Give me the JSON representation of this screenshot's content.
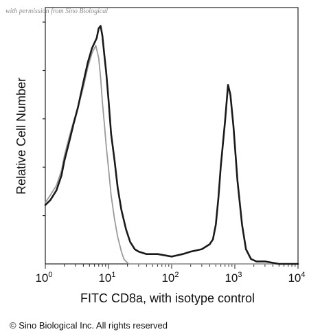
{
  "watermark": "with permission from Sino Biological",
  "copyright": "© Sino Biological Inc. All rights reserved",
  "chart_data": {
    "type": "line",
    "xlabel": "FITC CD8a, with isotype control",
    "ylabel": "Relative Cell Number",
    "x_scale": "log",
    "xlim": [
      1,
      10000
    ],
    "ylim": [
      0,
      100
    ],
    "x_ticks": [
      {
        "value": 1,
        "base": "10",
        "exp": "0"
      },
      {
        "value": 10,
        "base": "10",
        "exp": "1"
      },
      {
        "value": 100,
        "base": "10",
        "exp": "2"
      },
      {
        "value": 1000,
        "base": "10",
        "exp": "3"
      },
      {
        "value": 10000,
        "base": "10",
        "exp": "4"
      }
    ],
    "grid": false,
    "colors": {
      "sample": "#1a1a1a",
      "isotype": "#9a9a9a"
    },
    "series": [
      {
        "role": "sample",
        "x": [
          1,
          1.2,
          1.5,
          1.8,
          2,
          2.4,
          2.8,
          3.3,
          4,
          4.7,
          5.5,
          6.5,
          7,
          7.5,
          8,
          8.6,
          9.2,
          10,
          11,
          12.5,
          14,
          16,
          19,
          22,
          26,
          30,
          40,
          60,
          100,
          150,
          200,
          300,
          400,
          450,
          500,
          550,
          600,
          700,
          780,
          850,
          950,
          1100,
          1300,
          1500,
          1800,
          2200,
          3000,
          5000,
          10000
        ],
        "y": [
          24,
          26,
          30,
          36,
          42,
          50,
          57,
          64,
          74,
          82,
          88,
          92,
          96,
          97,
          93,
          85,
          78,
          67,
          53,
          42,
          31,
          22,
          14,
          9,
          6,
          5,
          4,
          4,
          3,
          4,
          5,
          6,
          8,
          10,
          16,
          27,
          40,
          58,
          73,
          69,
          56,
          34,
          16,
          6,
          2,
          1,
          1,
          0,
          0
        ]
      },
      {
        "role": "isotype",
        "x": [
          1,
          1.2,
          1.5,
          1.8,
          2,
          2.4,
          2.8,
          3.3,
          4,
          4.7,
          5.5,
          6.3,
          7,
          7.5,
          8,
          8.6,
          9.2,
          10,
          11,
          12.5,
          14,
          16,
          17.5,
          19,
          21,
          24,
          30,
          50,
          100,
          1000,
          10000
        ],
        "y": [
          25,
          28,
          32,
          38,
          44,
          52,
          58,
          64,
          72,
          80,
          86,
          89,
          84,
          76,
          66,
          57,
          48,
          39,
          28,
          18,
          11,
          5,
          2,
          1,
          0,
          0,
          0,
          0,
          0,
          0,
          0
        ]
      }
    ]
  }
}
